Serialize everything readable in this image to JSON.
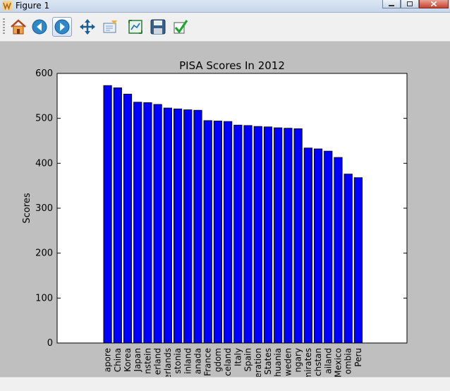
{
  "window": {
    "title": "Figure 1"
  },
  "toolbar": {
    "buttons": [
      {
        "name": "home-icon",
        "label": "Home"
      },
      {
        "name": "back-icon",
        "label": "Back"
      },
      {
        "name": "forward-icon",
        "label": "Forward"
      },
      {
        "name": "pan-icon",
        "label": "Pan"
      },
      {
        "name": "zoom-icon",
        "label": "Zoom"
      },
      {
        "name": "subplots-icon",
        "label": "Configure subplots"
      },
      {
        "name": "save-icon",
        "label": "Save"
      },
      {
        "name": "edit-icon",
        "label": "Edit parameters"
      }
    ]
  },
  "colors": {
    "bar": "#0000ff",
    "axes_bg": "#ffffff",
    "figure_bg": "#bfbfbf"
  },
  "chart_data": {
    "type": "bar",
    "title": "PISA Scores In 2012",
    "xlabel": "",
    "ylabel": "Scores",
    "ylim": [
      0,
      600
    ],
    "yticks": [
      0,
      100,
      200,
      300,
      400,
      500,
      600
    ],
    "categories": [
      "apore",
      "China",
      "Korea",
      "Japan",
      "nstein",
      "erland",
      "erlands",
      "stonia",
      "inland",
      "anada",
      "France",
      "gdom",
      "celand",
      "Italy",
      "Spain",
      "eration",
      "States",
      "huania",
      "weden",
      "ngary",
      "mirates",
      "chstan",
      "ailand",
      "Mexico",
      "ombia",
      "Peru"
    ],
    "values": [
      573,
      568,
      554,
      536,
      535,
      531,
      523,
      521,
      519,
      518,
      495,
      494,
      493,
      485,
      484,
      482,
      481,
      479,
      478,
      477,
      434,
      432,
      427,
      413,
      376,
      368
    ]
  }
}
